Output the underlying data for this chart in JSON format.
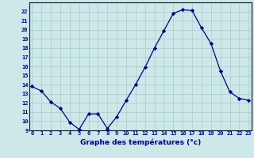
{
  "x": [
    0,
    1,
    2,
    3,
    4,
    5,
    6,
    7,
    8,
    9,
    10,
    11,
    12,
    13,
    14,
    15,
    16,
    17,
    18,
    19,
    20,
    21,
    22,
    23
  ],
  "y": [
    13.8,
    13.3,
    12.1,
    11.4,
    9.9,
    9.1,
    10.8,
    10.8,
    9.2,
    10.5,
    12.3,
    14.0,
    15.9,
    18.0,
    19.9,
    21.8,
    22.2,
    22.1,
    20.2,
    18.5,
    15.5,
    13.2,
    12.5,
    12.3
  ],
  "xlabel": "Graphe des températures (°c)",
  "ylim": [
    9,
    23
  ],
  "xlim": [
    -0.3,
    23.3
  ],
  "yticks": [
    9,
    10,
    11,
    12,
    13,
    14,
    15,
    16,
    17,
    18,
    19,
    20,
    21,
    22
  ],
  "xticks": [
    0,
    1,
    2,
    3,
    4,
    5,
    6,
    7,
    8,
    9,
    10,
    11,
    12,
    13,
    14,
    15,
    16,
    17,
    18,
    19,
    20,
    21,
    22,
    23
  ],
  "line_color": "#00008b",
  "marker_color": "#00008b",
  "bg_color": "#cce8e8",
  "grid_color": "#aacccc",
  "tick_label_color": "#00008b",
  "tick_fontsize": 5.0,
  "xlabel_fontsize": 6.5,
  "linewidth": 0.9,
  "markersize": 2.2
}
